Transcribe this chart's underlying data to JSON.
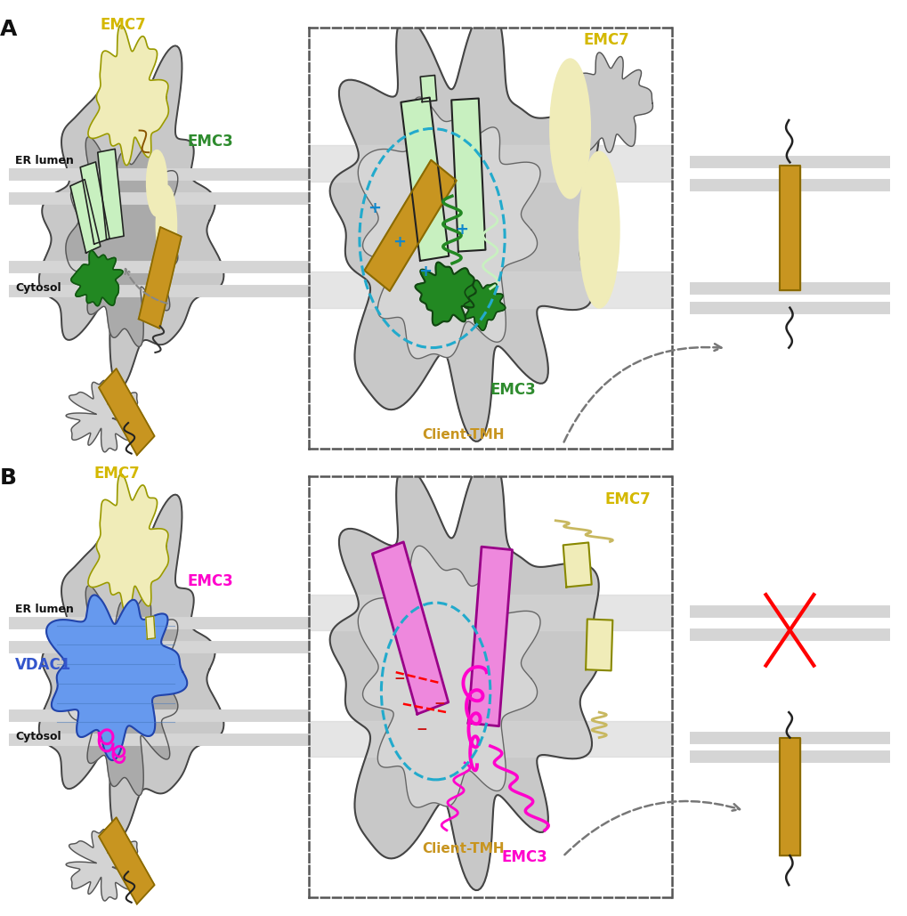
{
  "background_color": "#ffffff",
  "emc7_color": "#f0ecb8",
  "emc7_label_color": "#d4b800",
  "emc3_label_color_A": "#2e8b2e",
  "emc3_label_color_B": "#ff00cc",
  "tmh_bundle_color_A": "#c8f0c0",
  "gating_plug_color_A": "#228822",
  "tmh_bundle_color_B": "#ee88dd",
  "gating_plug_color_B": "#ff00cc",
  "client_tmh_color": "#c89520",
  "vdac1_color": "#6699ee",
  "vdac1_label_color": "#3355cc",
  "plus_color": "#1188cc",
  "minus_color": "#cc2222",
  "vestibule_circle_color": "#22aacc",
  "panel_A_label": "A",
  "panel_B_label": "B",
  "emc7_text": "EMC7",
  "emc3_text": "EMC3",
  "client_tmh_text": "Client-TMH",
  "vdac1_text": "VDAC1",
  "er_lumen_text": "ER lumen",
  "cytosol_text": "Cytosol",
  "mem_color": "#d5d5d5",
  "blob_outer_color": "#c8c8c8",
  "blob_inner_color": "#aaaaaa",
  "blob_lighter_color": "#dddddd"
}
